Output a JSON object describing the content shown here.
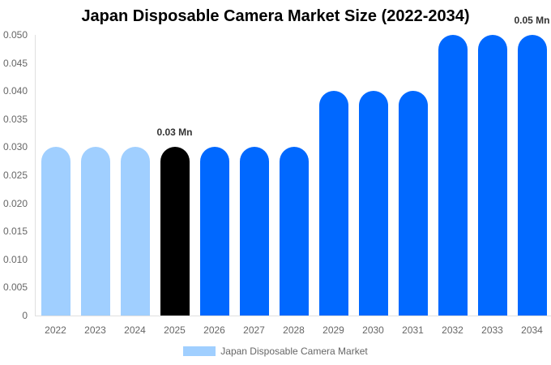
{
  "chart_data": {
    "type": "bar",
    "title": "Japan Disposable Camera Market Size (2022-2034)",
    "xlabel": "",
    "ylabel": "",
    "ylim": [
      0,
      0.05
    ],
    "yticks": [
      "0",
      "0.005",
      "0.010",
      "0.015",
      "0.020",
      "0.025",
      "0.030",
      "0.035",
      "0.040",
      "0.045",
      "0.050"
    ],
    "categories": [
      "2022",
      "2023",
      "2024",
      "2025",
      "2026",
      "2027",
      "2028",
      "2029",
      "2030",
      "2031",
      "2032",
      "2033",
      "2034"
    ],
    "series": [
      {
        "name": "Japan Disposable Camera Market",
        "values": [
          0.03,
          0.03,
          0.03,
          0.03,
          0.03,
          0.03,
          0.03,
          0.04,
          0.04,
          0.04,
          0.05,
          0.05,
          0.05
        ]
      }
    ],
    "bar_colors": [
      "#a0cfff",
      "#a0cfff",
      "#a0cfff",
      "#000000",
      "#0068ff",
      "#0068ff",
      "#0068ff",
      "#0068ff",
      "#0068ff",
      "#0068ff",
      "#0068ff",
      "#0068ff",
      "#0068ff"
    ],
    "annotations": [
      {
        "category": "2025",
        "text": "0.03 Mn"
      },
      {
        "category": "2034",
        "text": "0.05 Mn"
      }
    ],
    "legend": {
      "position": "bottom",
      "label": "Japan Disposable Camera Market",
      "color": "#a0cfff"
    },
    "grid": false
  }
}
